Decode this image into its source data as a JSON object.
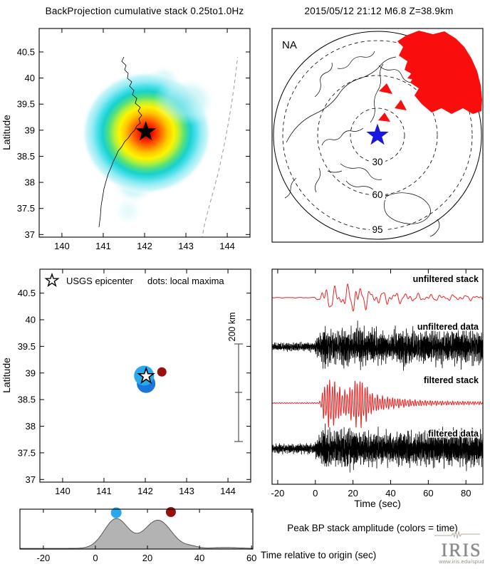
{
  "figure": {
    "left_title": "BackProjection cumulative stack 0.25to1.0Hz",
    "right_title": "2015/05/12 21:12  M6.8  Z=38.9km",
    "amplitude_caption": "Peak BP stack amplitude (colors = time)",
    "origin_axis_label": "Time relative to origin (sec)",
    "iris_word": "IRIS",
    "iris_url": "www.iris.edu/spud"
  },
  "colors": {
    "stack_red": "#f02020",
    "data_black": "#000000",
    "station_red": "#f90d0d",
    "event_blue": "#1a18dc",
    "maxima_blue": "#29a8ec",
    "maxima_dark_red": "#971111",
    "hist_fill": "#b3b3b3",
    "hist_edge": "#4d4d4d",
    "coast_gray": "#aaaaaa",
    "trench_gray": "#9a9a9a"
  },
  "chart_data": [
    {
      "id": "bp_map",
      "type": "heatmap",
      "title": "BackProjection cumulative stack 0.25to1.0Hz",
      "ylabel": "Latitude",
      "xlim": [
        139.45,
        144.55
      ],
      "ylim": [
        36.95,
        40.95
      ],
      "xticks": [
        140,
        141,
        142,
        143,
        144
      ],
      "yticks": [
        37,
        37.5,
        38,
        38.5,
        39,
        39.5,
        40,
        40.5
      ],
      "epicenter": {
        "lon": 142.03,
        "lat": 38.97,
        "marker": "filled-black-star"
      },
      "heat_peak": {
        "lon": 142.05,
        "lat": 38.95,
        "radius_deg": 1.5
      },
      "heat_gradient": [
        "#b80000",
        "#e80800",
        "#ff4400",
        "#ff8800",
        "#ffc800",
        "#fdf400",
        "#b4f03a",
        "#55e07c",
        "#18d2cc",
        "#49dfe9",
        "#93ecf3",
        "#c9f5f8",
        "#ffffff"
      ],
      "secondary_blobs": [
        {
          "lon": 142.45,
          "lat": 39.9,
          "radius_deg": 0.45,
          "intensity": 0.35
        },
        {
          "lon": 141.75,
          "lat": 38.0,
          "radius_deg": 0.55,
          "intensity": 0.4
        },
        {
          "lon": 141.6,
          "lat": 37.45,
          "radius_deg": 0.35,
          "intensity": 0.15
        },
        {
          "lon": 143.1,
          "lat": 39.55,
          "radius_deg": 0.55,
          "intensity": 0.25
        }
      ]
    },
    {
      "id": "station_map",
      "type": "map",
      "title": "2015/05/12 21:12  M6.8  Z=38.9km",
      "network_label": "NA",
      "projection": "azimuthal, event-centered",
      "distance_rings_deg": [
        30,
        60,
        95
      ],
      "event_marker": {
        "shape": "star",
        "color": "#1a18dc"
      },
      "stations": {
        "region": "North America",
        "color": "#f90d0d"
      }
    },
    {
      "id": "maxima_map",
      "type": "map",
      "legend": {
        "star_label": "USGS epicenter",
        "dots_label": "dots: local maxima"
      },
      "ylabel": "Latitude",
      "scale_bar_label": "200 km",
      "xlim": [
        139.45,
        144.55
      ],
      "ylim": [
        36.95,
        40.95
      ],
      "xticks": [
        140,
        141,
        142,
        143,
        144
      ],
      "yticks": [
        37,
        37.5,
        38,
        38.5,
        39,
        39.5,
        40,
        40.5
      ],
      "epicenter": {
        "lon": 142.02,
        "lat": 38.94,
        "marker": "open-star"
      },
      "local_maxima": [
        {
          "lon": 141.97,
          "lat": 38.95,
          "radius_px": 14,
          "color": "#29a8ec",
          "time_sec": 8
        },
        {
          "lon": 142.02,
          "lat": 38.8,
          "radius_px": 13,
          "color": "#1877d8",
          "time_sec": 8
        },
        {
          "lon": 142.4,
          "lat": 39.02,
          "radius_px": 6.5,
          "color": "#971111",
          "time_sec": 29
        }
      ]
    },
    {
      "id": "waveforms",
      "type": "line",
      "xlabel": "Time (sec)",
      "xlim": [
        -23,
        89
      ],
      "xticks": [
        -20,
        0,
        20,
        40,
        60,
        80
      ],
      "traces": [
        {
          "name": "unfiltered stack",
          "color": "#f02020",
          "kind": "stack",
          "baseline": 418,
          "amp": 27,
          "freqs": [
            0.16,
            0.27,
            0.45
          ],
          "weights": [
            0.55,
            0.35,
            0.25
          ],
          "seed": 11,
          "envelope": [
            [
              -23,
              0.02
            ],
            [
              -0.5,
              0.02
            ],
            [
              1,
              0.15
            ],
            [
              4,
              0.6
            ],
            [
              8,
              0.85
            ],
            [
              12,
              0.55
            ],
            [
              17,
              0.75
            ],
            [
              21,
              1.0
            ],
            [
              25,
              0.8
            ],
            [
              29,
              0.5
            ],
            [
              34,
              0.38
            ],
            [
              40,
              0.45
            ],
            [
              47,
              0.3
            ],
            [
              54,
              0.24
            ],
            [
              62,
              0.2
            ],
            [
              72,
              0.18
            ],
            [
              80,
              0.17
            ],
            [
              89,
              0.15
            ]
          ]
        },
        {
          "name": "unfiltered data",
          "color": "#000000",
          "kind": "data",
          "baseline": 487,
          "amp": 44,
          "freqs": [
            1.7,
            2.9,
            4.3,
            6.1
          ],
          "weights": [
            0.45,
            0.3,
            0.35,
            0.3
          ],
          "noise": 0.5,
          "seed": 23,
          "envelope": [
            [
              -23,
              0.18
            ],
            [
              -1,
              0.2
            ],
            [
              2,
              0.55
            ],
            [
              5,
              0.95
            ],
            [
              8,
              0.75
            ],
            [
              12,
              0.7
            ],
            [
              15,
              1.0
            ],
            [
              19,
              0.85
            ],
            [
              23,
              0.95
            ],
            [
              28,
              0.75
            ],
            [
              33,
              0.85
            ],
            [
              38,
              0.6
            ],
            [
              43,
              0.75
            ],
            [
              49,
              0.9
            ],
            [
              54,
              0.65
            ],
            [
              60,
              0.8
            ],
            [
              68,
              0.7
            ],
            [
              76,
              0.8
            ],
            [
              83,
              0.72
            ],
            [
              89,
              0.78
            ]
          ]
        },
        {
          "name": "filtered stack",
          "color": "#f02020",
          "kind": "stack",
          "baseline": 566,
          "amp": 36,
          "freqs": [
            0.75,
            1.1
          ],
          "weights": [
            0.8,
            0.25
          ],
          "seed": 37,
          "envelope": [
            [
              -23,
              0.015
            ],
            [
              2,
              0.02
            ],
            [
              4,
              0.55
            ],
            [
              6,
              0.95
            ],
            [
              9,
              1.0
            ],
            [
              12,
              0.7
            ],
            [
              15,
              0.5
            ],
            [
              18,
              0.6
            ],
            [
              21,
              0.95
            ],
            [
              24,
              1.0
            ],
            [
              27,
              0.75
            ],
            [
              30,
              0.4
            ],
            [
              34,
              0.3
            ],
            [
              39,
              0.24
            ],
            [
              45,
              0.18
            ],
            [
              52,
              0.13
            ],
            [
              60,
              0.1
            ],
            [
              70,
              0.08
            ],
            [
              80,
              0.07
            ],
            [
              89,
              0.06
            ]
          ]
        },
        {
          "name": "filtered data",
          "color": "#000000",
          "kind": "data",
          "baseline": 630,
          "amp": 44,
          "freqs": [
            2.1,
            3.3,
            4.7,
            6.3
          ],
          "weights": [
            0.4,
            0.32,
            0.35,
            0.3
          ],
          "noise": 0.5,
          "seed": 51,
          "envelope": [
            [
              -23,
              0.2
            ],
            [
              -1,
              0.22
            ],
            [
              2,
              0.6
            ],
            [
              5,
              1.0
            ],
            [
              8,
              0.8
            ],
            [
              11,
              0.75
            ],
            [
              14,
              0.9
            ],
            [
              18,
              1.0
            ],
            [
              22,
              0.85
            ],
            [
              27,
              0.8
            ],
            [
              33,
              0.75
            ],
            [
              40,
              0.72
            ],
            [
              47,
              0.8
            ],
            [
              54,
              0.76
            ],
            [
              61,
              0.8
            ],
            [
              70,
              0.78
            ],
            [
              80,
              0.82
            ],
            [
              89,
              0.78
            ]
          ]
        }
      ]
    },
    {
      "id": "peak_amplitude",
      "type": "area",
      "caption": "Peak BP stack amplitude (colors = time)",
      "xlabel": "Time relative to origin (sec)",
      "xlim": [
        -29,
        60.5
      ],
      "xticks": [
        -20,
        0,
        20,
        40,
        60
      ],
      "fill": "#b3b3b3",
      "baseline": 0.018,
      "components": [
        {
          "center": 8,
          "sigma": 4.6,
          "height": 0.8
        },
        {
          "center": 24,
          "sigma": 5.2,
          "height": 0.76
        },
        {
          "center": 37,
          "sigma": 2.5,
          "height": 0.05
        },
        {
          "center": 50,
          "sigma": 5.0,
          "height": 0.025
        }
      ],
      "dots": [
        {
          "t": 8,
          "color": "#29a8ec",
          "label": "first local maximum"
        },
        {
          "t": 29,
          "color": "#971111",
          "label": "second local maximum"
        }
      ]
    }
  ]
}
